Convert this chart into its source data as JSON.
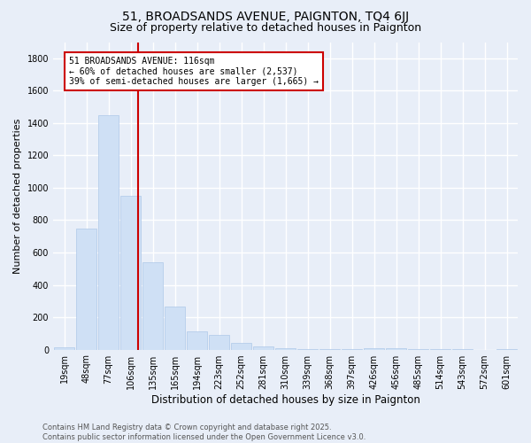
{
  "title": "51, BROADSANDS AVENUE, PAIGNTON, TQ4 6JJ",
  "subtitle": "Size of property relative to detached houses in Paignton",
  "xlabel": "Distribution of detached houses by size in Paignton",
  "ylabel": "Number of detached properties",
  "categories": [
    "19sqm",
    "48sqm",
    "77sqm",
    "106sqm",
    "135sqm",
    "165sqm",
    "194sqm",
    "223sqm",
    "252sqm",
    "281sqm",
    "310sqm",
    "339sqm",
    "368sqm",
    "397sqm",
    "426sqm",
    "456sqm",
    "485sqm",
    "514sqm",
    "543sqm",
    "572sqm",
    "601sqm"
  ],
  "values": [
    15,
    745,
    1450,
    950,
    540,
    265,
    115,
    90,
    40,
    20,
    8,
    5,
    3,
    2,
    8,
    8,
    2,
    2,
    2,
    0,
    2
  ],
  "bar_color": "#cfe0f5",
  "bar_edgecolor": "#aec8e8",
  "vline_color": "#cc0000",
  "vline_x": 3.35,
  "annotation_text": "51 BROADSANDS AVENUE: 116sqm\n← 60% of detached houses are smaller (2,537)\n39% of semi-detached houses are larger (1,665) →",
  "annotation_box_facecolor": "#ffffff",
  "annotation_box_edgecolor": "#cc0000",
  "background_color": "#e8eef8",
  "grid_color": "#ffffff",
  "footer_line1": "Contains HM Land Registry data © Crown copyright and database right 2025.",
  "footer_line2": "Contains public sector information licensed under the Open Government Licence v3.0.",
  "ylim": [
    0,
    1900
  ],
  "yticks": [
    0,
    200,
    400,
    600,
    800,
    1000,
    1200,
    1400,
    1600,
    1800
  ],
  "title_fontsize": 10,
  "subtitle_fontsize": 9,
  "xlabel_fontsize": 8.5,
  "ylabel_fontsize": 8,
  "tick_fontsize": 7,
  "footer_fontsize": 6,
  "annot_fontsize": 7
}
